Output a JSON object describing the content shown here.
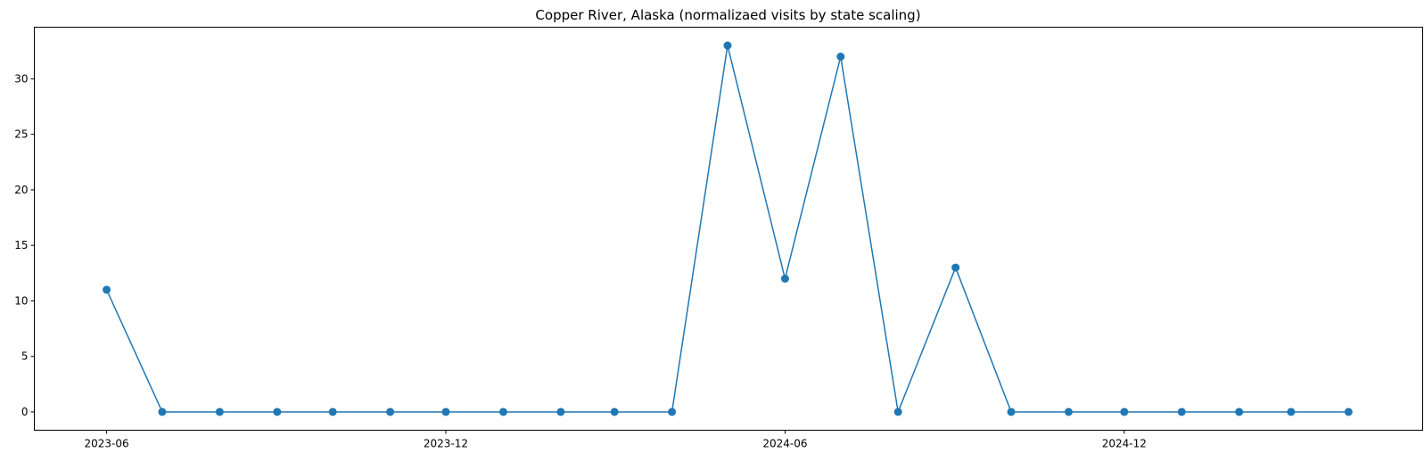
{
  "chart_data": {
    "type": "line",
    "title": "Copper River, Alaska (normalizaed visits by state scaling)",
    "xlabel": "",
    "ylabel": "",
    "color": "#1f77b4",
    "marker": "circle",
    "grid": false,
    "x": [
      "2023-06",
      "2023-07",
      "2023-08",
      "2023-09",
      "2023-10",
      "2023-11",
      "2023-12",
      "2024-01",
      "2024-02",
      "2024-03",
      "2024-04",
      "2024-05",
      "2024-06",
      "2024-07",
      "2024-08",
      "2024-09",
      "2024-10",
      "2024-11",
      "2024-12",
      "2025-01",
      "2025-02",
      "2025-03",
      "2025-04"
    ],
    "values": [
      11,
      0,
      0,
      0,
      0,
      0,
      0,
      0,
      0,
      0,
      0,
      33,
      12,
      32,
      0,
      13,
      0,
      0,
      0,
      0,
      0,
      0,
      0
    ],
    "xticks": [
      "2023-06",
      "2023-12",
      "2024-06",
      "2024-12"
    ],
    "yticks": [
      0,
      5,
      10,
      15,
      20,
      25,
      30
    ],
    "xlim": [
      "2023-04-23",
      "2025-05-11"
    ],
    "ylim": [
      -1.65,
      34.65
    ]
  }
}
